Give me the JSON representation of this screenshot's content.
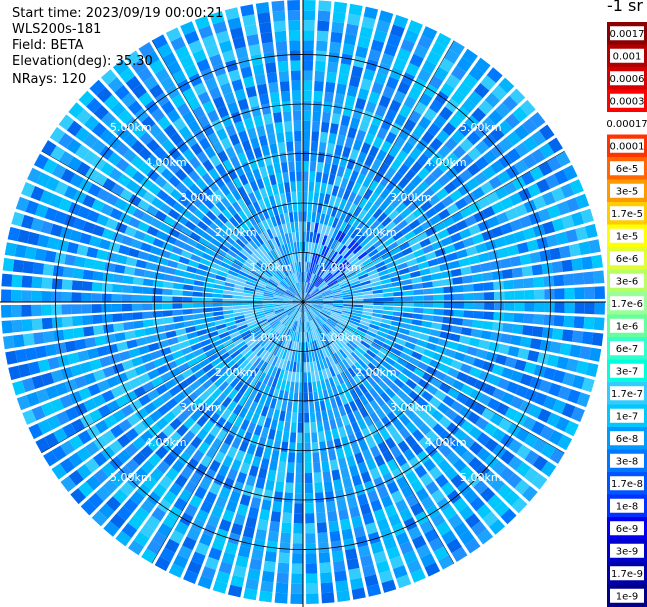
{
  "header": {
    "start_time": "Start time: 2023/09/19 00:00:21",
    "instrument": "WLS200s-181",
    "field": "Field: BETA",
    "elevation": "Elevation(deg): 35.30",
    "nrays": "NRays: 120"
  },
  "colorbar": {
    "title": "-1 sr",
    "levels": [
      "0.0017",
      "0.001",
      "0.0006",
      "0.0003",
      "0.00017",
      "0.0001",
      "6e-5",
      "3e-5",
      "1.7e-5",
      "1e-5",
      "6e-6",
      "3e-6",
      "1.7e-6",
      "1e-6",
      "6e-7",
      "3e-7",
      "1.7e-7",
      "1e-7",
      "6e-8",
      "3e-8",
      "1.7e-8",
      "1e-8",
      "6e-9",
      "3e-9",
      "1.7e-9",
      "1e-9"
    ],
    "colors": [
      "#8b0000",
      "#b00000",
      "#d40000",
      "#ff0000",
      "#ffffff",
      "#ff3300",
      "#ff6600",
      "#ff9900",
      "#ffcc00",
      "#ffff00",
      "#e0ff33",
      "#b8ff66",
      "#99ff99",
      "#66ff99",
      "#33ffcc",
      "#00ffdd",
      "#33ccff",
      "#00c8ff",
      "#0099ff",
      "#0077ff",
      "#0055ff",
      "#0033ff",
      "#0000ee",
      "#0000cc",
      "#0000aa",
      "#000088"
    ]
  },
  "chart_data": {
    "type": "heatmap",
    "projection": "polar PPI",
    "field": "BETA",
    "elevation_deg": 35.3,
    "n_rays": 120,
    "range_rings_km": [
      1,
      2,
      3,
      4,
      5
    ],
    "range_ring_labels": [
      "1.00km",
      "2.00km",
      "3.00km",
      "4.00km",
      "5.00km"
    ],
    "max_range_km": 6.1,
    "dominant_value_range": [
      "1e-8",
      "1e-7"
    ],
    "dominant_colors": [
      "#0077ff",
      "#1e90ff",
      "#00c8ff",
      "#33ccff"
    ],
    "enhanced_region": {
      "azimuth_deg": [
        10,
        60
      ],
      "range_km": [
        0.1,
        1.6
      ],
      "color": "#0033ff"
    }
  }
}
